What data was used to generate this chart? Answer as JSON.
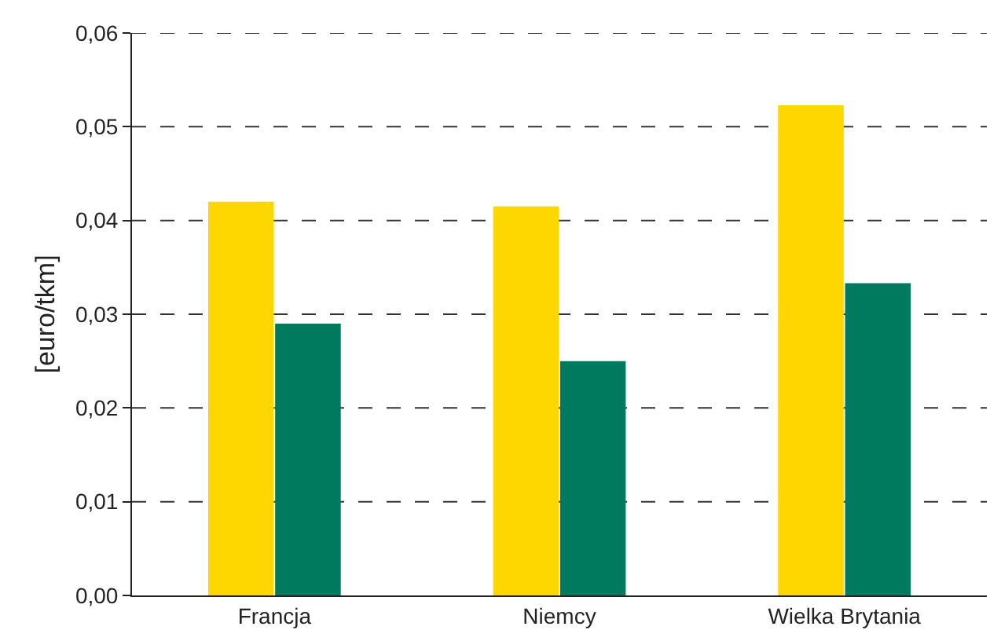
{
  "chart_data": {
    "type": "bar",
    "ylabel": "[euro/tkm]",
    "categories": [
      "Francja",
      "Niemcy",
      "Wielka Brytania"
    ],
    "series": [
      {
        "color": "#ffd700",
        "values": [
          0.042,
          0.0415,
          0.0523
        ]
      },
      {
        "color": "#007a5e",
        "values": [
          0.029,
          0.025,
          0.0333
        ]
      }
    ],
    "ylim": [
      0,
      0.06
    ],
    "yticks": [
      {
        "value": 0,
        "label": "0,00"
      },
      {
        "value": 0.01,
        "label": "0,01"
      },
      {
        "value": 0.02,
        "label": "0,02"
      },
      {
        "value": 0.03,
        "label": "0,03"
      },
      {
        "value": 0.04,
        "label": "0,04"
      },
      {
        "value": 0.05,
        "label": "0,05"
      },
      {
        "value": 0.06,
        "label": "0,06"
      }
    ],
    "grid": "y"
  }
}
